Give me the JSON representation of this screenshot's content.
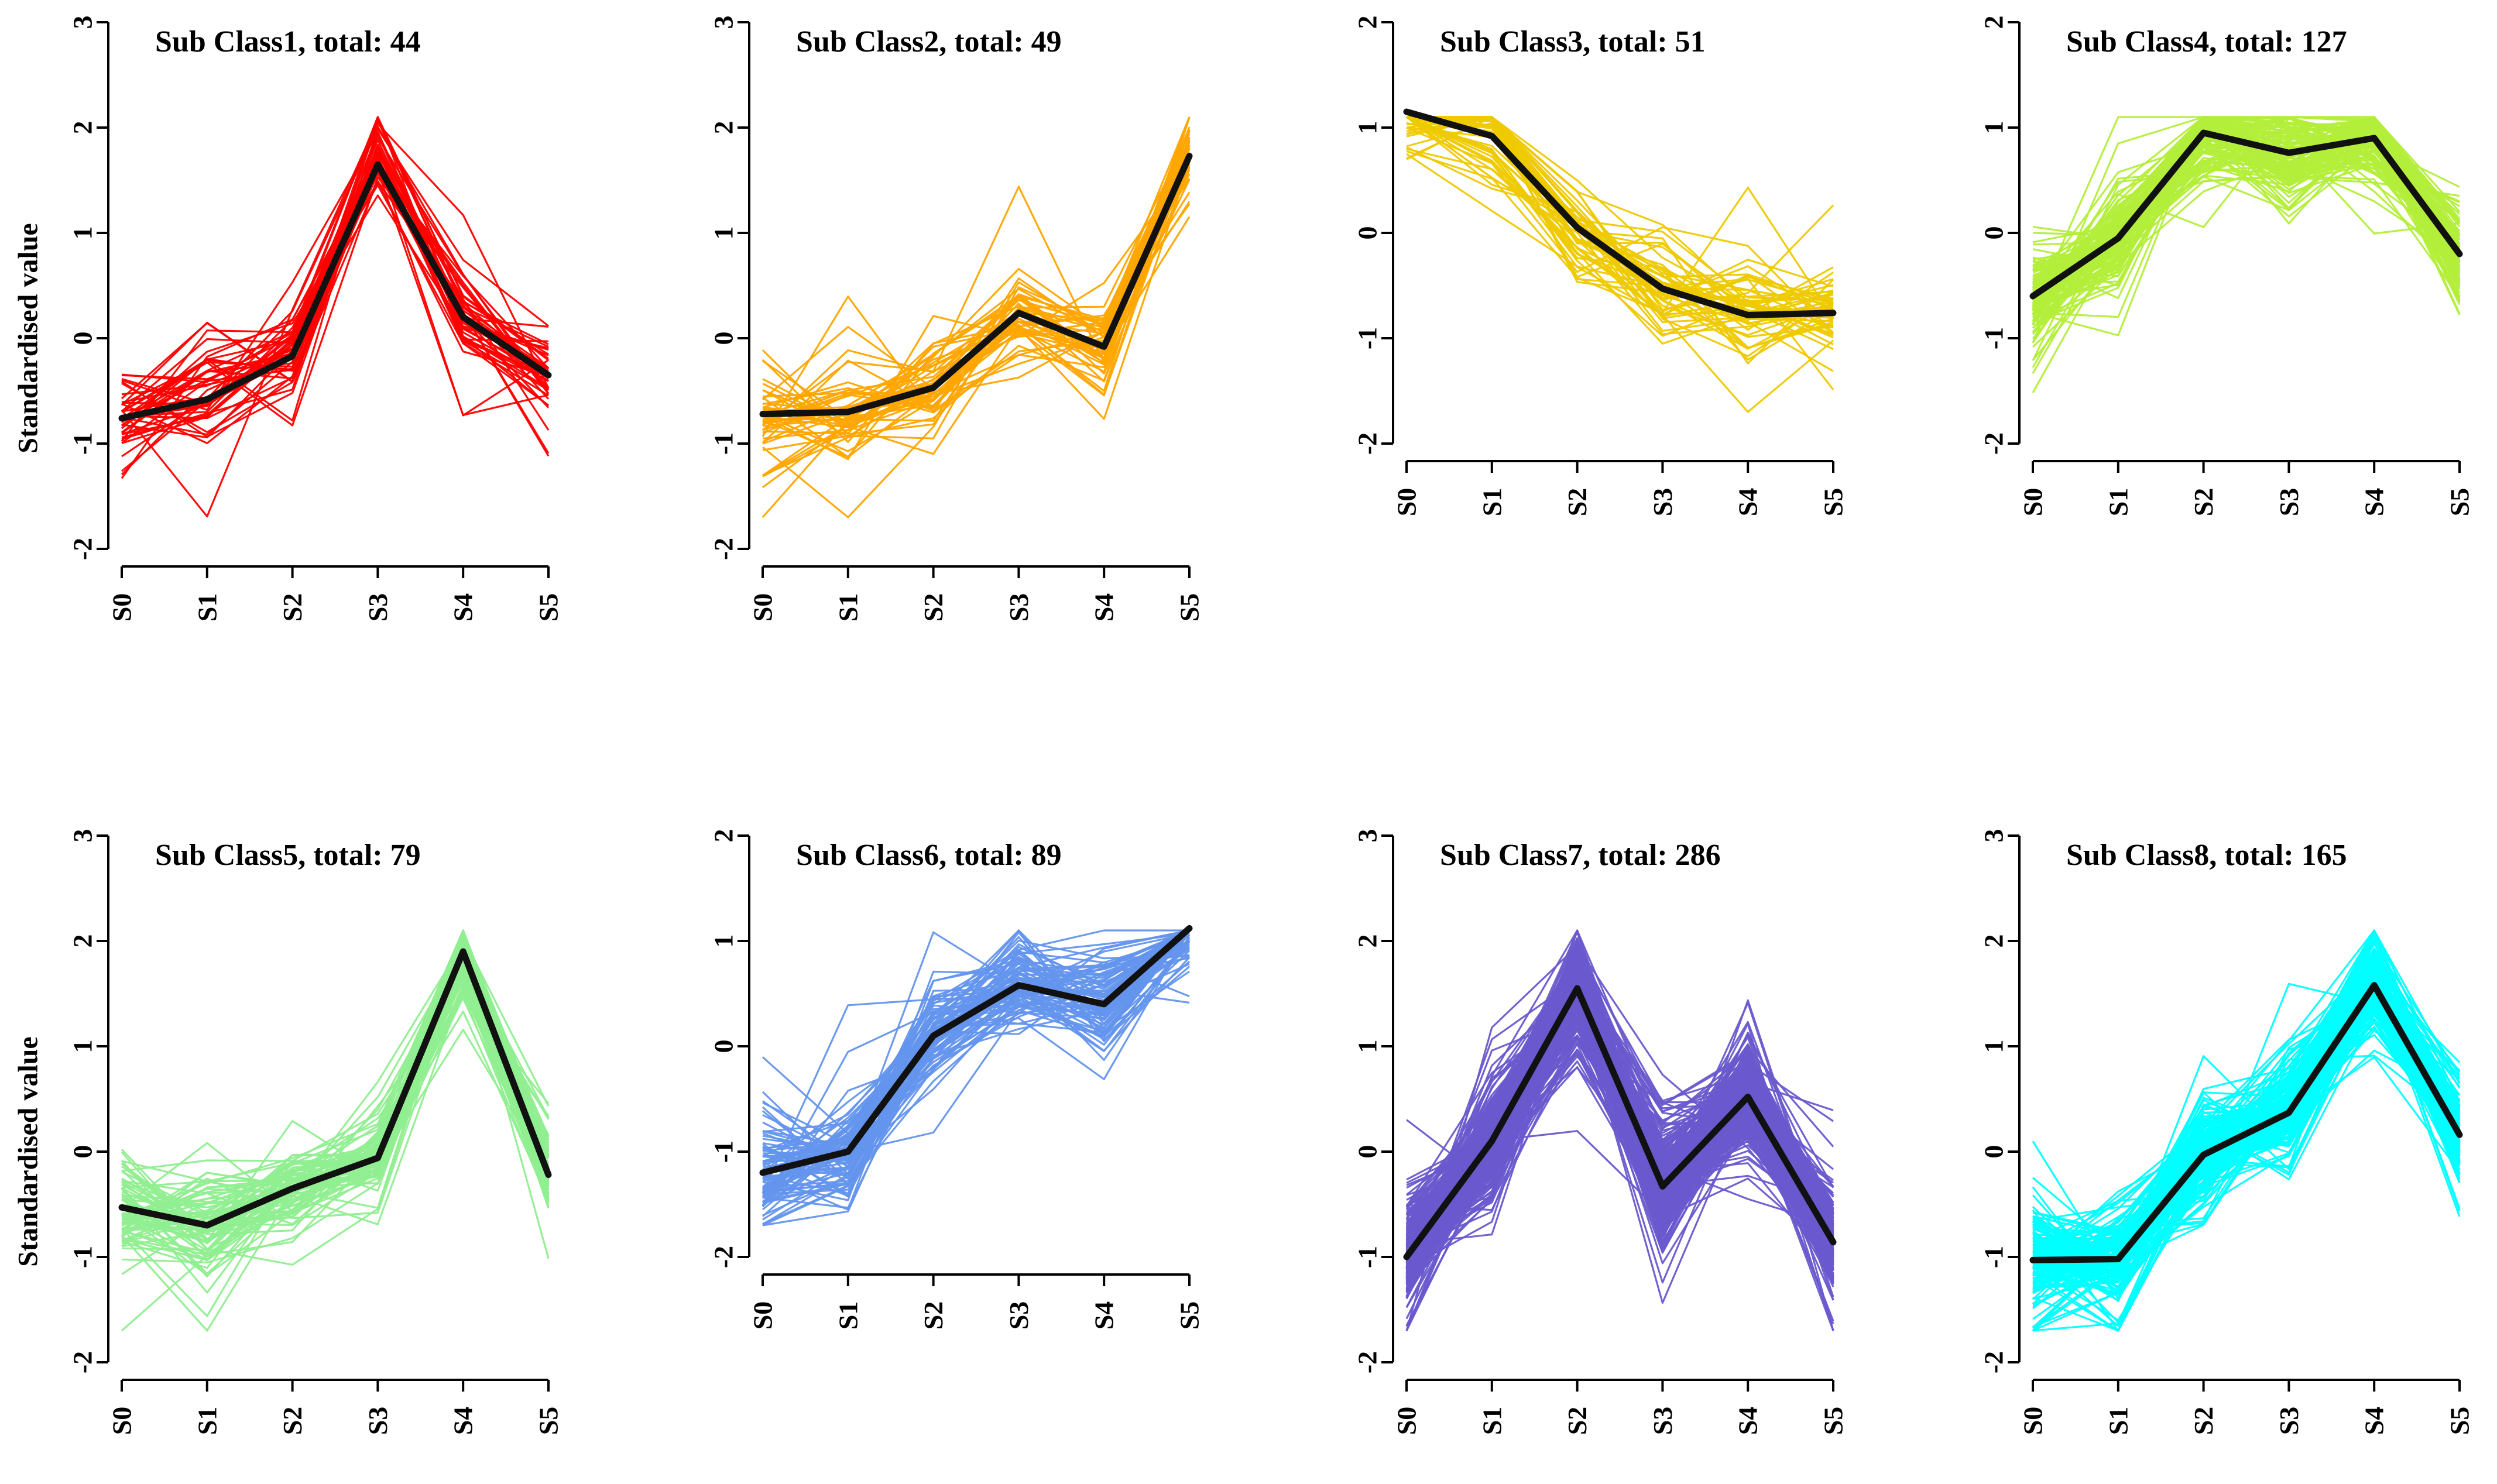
{
  "figure": {
    "ylabel": "Standardised value",
    "center_line_color": "#111111"
  },
  "chart_data": [
    {
      "type": "line",
      "title": "Sub Class1, total: 44",
      "color": "#ff0000",
      "categories": [
        "S0",
        "S1",
        "S2",
        "S3",
        "S4",
        "S5"
      ],
      "ylim": [
        -2,
        3
      ],
      "yticks": [
        "-2",
        "-1",
        "0",
        "1",
        "2",
        "3"
      ],
      "ylabel": "Standardised value",
      "center": [
        -0.76,
        -0.58,
        -0.17,
        1.65,
        0.2,
        -0.35
      ],
      "n_lines": 44
    },
    {
      "type": "line",
      "title": "Sub Class2, total: 49",
      "color": "#ffa500",
      "categories": [
        "S0",
        "S1",
        "S2",
        "S3",
        "S4",
        "S5"
      ],
      "ylim": [
        -2,
        3
      ],
      "yticks": [
        "-2",
        "-1",
        "0",
        "1",
        "2",
        "3"
      ],
      "ylabel": "",
      "center": [
        -0.72,
        -0.7,
        -0.47,
        0.24,
        -0.08,
        1.73
      ],
      "n_lines": 49
    },
    {
      "type": "line",
      "title": "Sub Class3, total: 51",
      "color": "#eec900",
      "categories": [
        "S0",
        "S1",
        "S2",
        "S3",
        "S4",
        "S5"
      ],
      "ylim": [
        -2,
        2
      ],
      "yticks": [
        "-2",
        "-1",
        "0",
        "1",
        "2"
      ],
      "ylabel": "",
      "center": [
        1.15,
        0.92,
        0.05,
        -0.53,
        -0.78,
        -0.76
      ],
      "n_lines": 51
    },
    {
      "type": "line",
      "title": "Sub Class4, total: 127",
      "color": "#b3ee3a",
      "categories": [
        "S0",
        "S1",
        "S2",
        "S3",
        "S4",
        "S5"
      ],
      "ylim": [
        -2,
        2
      ],
      "yticks": [
        "-2",
        "-1",
        "0",
        "1",
        "2"
      ],
      "ylabel": "",
      "center": [
        -0.6,
        -0.05,
        0.95,
        0.76,
        0.9,
        -0.2
      ],
      "n_lines": 127
    },
    {
      "type": "line",
      "title": "Sub Class5, total: 79",
      "color": "#90ee90",
      "categories": [
        "S0",
        "S1",
        "S2",
        "S3",
        "S4",
        "S5"
      ],
      "ylim": [
        -2,
        3
      ],
      "yticks": [
        "-2",
        "-1",
        "0",
        "1",
        "2",
        "3"
      ],
      "ylabel": "Standardised value",
      "center": [
        -0.53,
        -0.7,
        -0.35,
        -0.06,
        1.9,
        -0.22
      ],
      "n_lines": 79
    },
    {
      "type": "line",
      "title": "Sub Class6, total: 89",
      "color": "#6495ed",
      "categories": [
        "S0",
        "S1",
        "S2",
        "S3",
        "S4",
        "S5"
      ],
      "ylim": [
        -2,
        2
      ],
      "yticks": [
        "-2",
        "-1",
        "0",
        "1",
        "2"
      ],
      "ylabel": "",
      "center": [
        -1.2,
        -1.0,
        0.1,
        0.58,
        0.4,
        1.12
      ],
      "n_lines": 89
    },
    {
      "type": "line",
      "title": "Sub Class7, total: 286",
      "color": "#6a5acd",
      "categories": [
        "S0",
        "S1",
        "S2",
        "S3",
        "S4",
        "S5"
      ],
      "ylim": [
        -2,
        3
      ],
      "yticks": [
        "-2",
        "-1",
        "0",
        "1",
        "2",
        "3"
      ],
      "ylabel": "",
      "center": [
        -1.0,
        0.1,
        1.55,
        -0.33,
        0.52,
        -0.86
      ],
      "n_lines": 286
    },
    {
      "type": "line",
      "title": "Sub Class8, total: 165",
      "color": "#00ffff",
      "categories": [
        "S0",
        "S1",
        "S2",
        "S3",
        "S4",
        "S5"
      ],
      "ylim": [
        -2,
        3
      ],
      "yticks": [
        "-2",
        "-1",
        "0",
        "1",
        "2",
        "3"
      ],
      "ylabel": "",
      "center": [
        -1.03,
        -1.02,
        -0.03,
        0.37,
        1.58,
        0.16
      ],
      "n_lines": 165
    }
  ]
}
